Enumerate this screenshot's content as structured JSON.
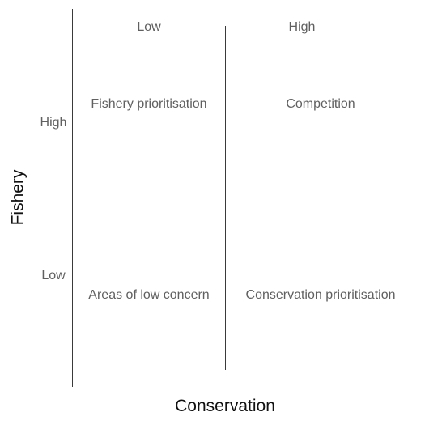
{
  "columns": {
    "low_label": "Low",
    "high_label": "High"
  },
  "rows": {
    "high_label": "High",
    "low_label": "Low"
  },
  "quadrants": {
    "top_left": "Fishery prioritisation",
    "top_right": "Competition",
    "bottom_left": "Areas of low concern",
    "bottom_right": "Conservation prioritisation"
  },
  "axes": {
    "x_title": "Conservation",
    "y_title": "Fishery"
  },
  "colors": {
    "line": "#3a3a3a",
    "label": "#606060",
    "axis_title": "#111111"
  }
}
